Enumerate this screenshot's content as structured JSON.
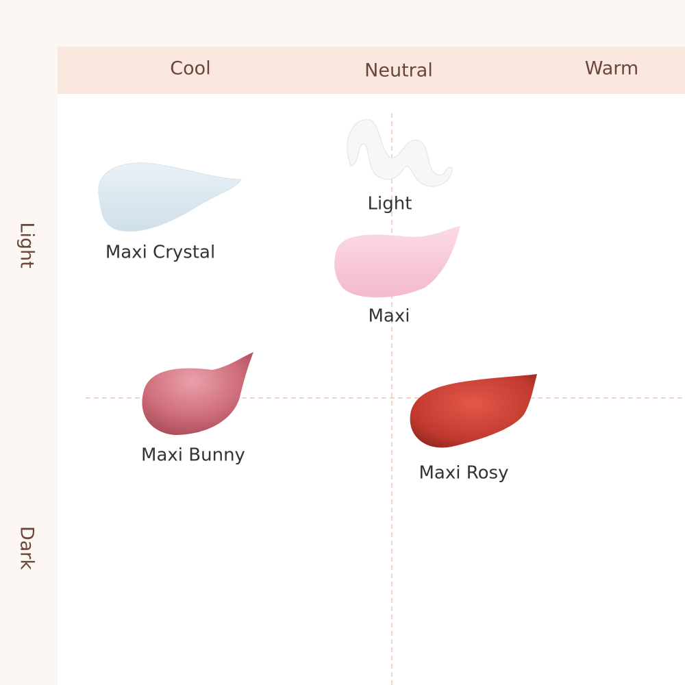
{
  "columns": [
    "Cool",
    "Neutral",
    "Warm"
  ],
  "rows": [
    "Light",
    "Dark"
  ],
  "items": [
    {
      "label": "Maxi Crystal"
    },
    {
      "label": "Light"
    },
    {
      "label": "Maxi"
    },
    {
      "label": "Maxi Bunny"
    },
    {
      "label": "Maxi Rosy"
    }
  ]
}
